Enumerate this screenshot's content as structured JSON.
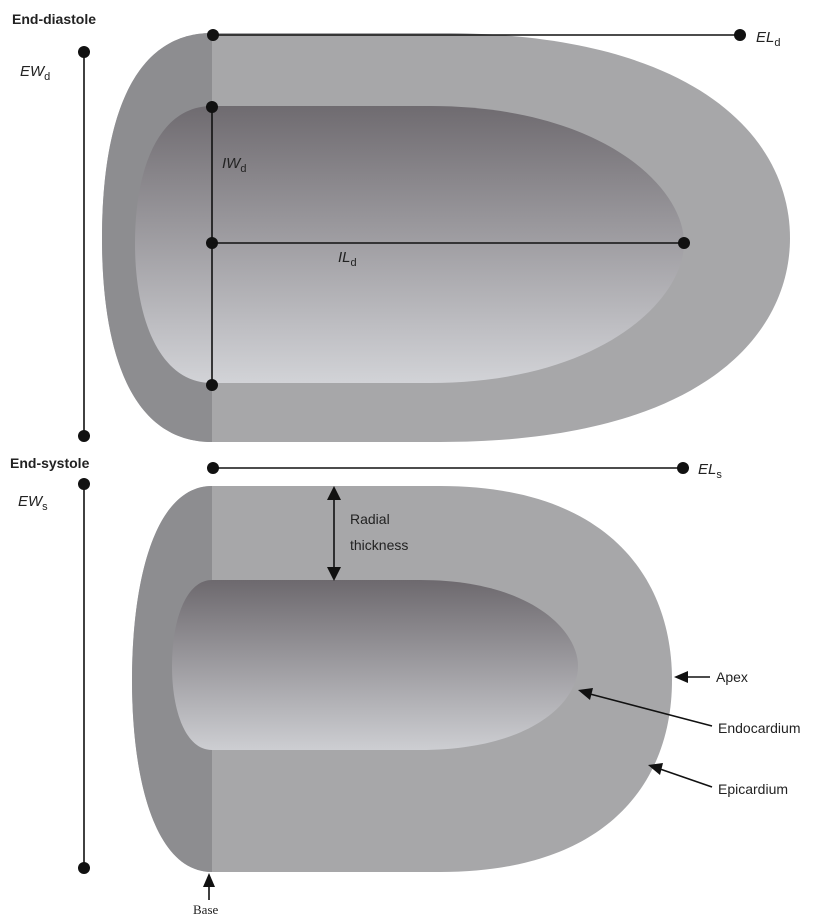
{
  "diastole": {
    "title": "End-diastole",
    "external_width": {
      "main": "EW",
      "sub": "d"
    },
    "external_length": {
      "main": "EL",
      "sub": "d"
    },
    "internal_width": {
      "main": "IW",
      "sub": "d"
    },
    "internal_length": {
      "main": "IL",
      "sub": "d"
    }
  },
  "systole": {
    "title": "End-systole",
    "external_width": {
      "main": "EW",
      "sub": "s"
    },
    "external_length": {
      "main": "EL",
      "sub": "s"
    },
    "radial_thickness": [
      "Radial",
      "thickness"
    ],
    "apex": "Apex",
    "endocardium": "Endocardium",
    "epicardium": "Epicardium",
    "base": "Base"
  },
  "colors": {
    "wall": "#a7a7a9",
    "wall_base_band": "#8c8c8e",
    "cavity_dark": "#6f6b70",
    "cavity_light": "#cfd0d4",
    "line": "#111111"
  }
}
